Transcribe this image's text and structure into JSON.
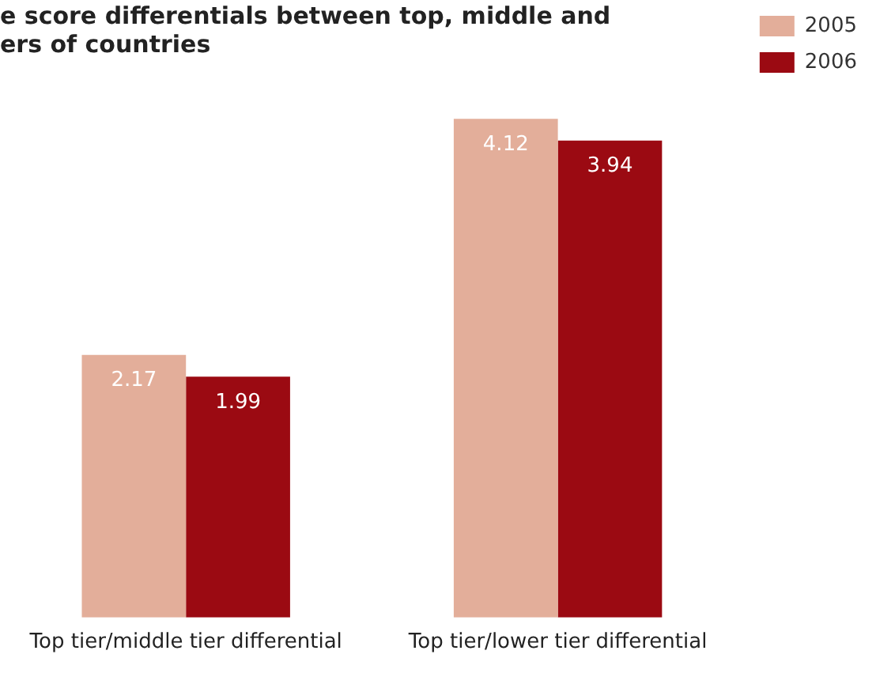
{
  "chart_data": {
    "type": "bar",
    "title": "e score differentials between top, middle and\ners of countries",
    "categories": [
      "Top tier/middle tier differential",
      "Top tier/lower tier differential"
    ],
    "series": [
      {
        "name": "2005",
        "color": "#e3ae9a",
        "values": [
          2.17,
          4.12
        ]
      },
      {
        "name": "2006",
        "color": "#9b0a12",
        "values": [
          1.99,
          3.94
        ]
      }
    ],
    "data_labels": true,
    "legend": "top right",
    "grid": false
  }
}
